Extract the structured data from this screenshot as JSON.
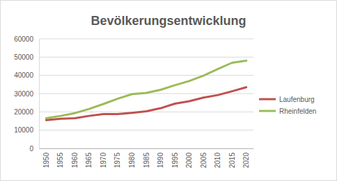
{
  "chart_data": {
    "type": "line",
    "title": "Bevölkerungsentwicklung",
    "categories": [
      "1950",
      "1955",
      "1960",
      "1965",
      "1970",
      "1975",
      "1980",
      "1985",
      "1990",
      "1995",
      "2000",
      "2005",
      "2010",
      "2015",
      "2020"
    ],
    "series": [
      {
        "name": "Laufenburg",
        "color": "#c0504d",
        "values": [
          15500,
          16200,
          16500,
          17800,
          18800,
          18800,
          19500,
          20300,
          22000,
          24500,
          25800,
          27800,
          29200,
          31300,
          33500
        ]
      },
      {
        "name": "Rheinfelden",
        "color": "#9bbb59",
        "values": [
          16500,
          17800,
          19300,
          21600,
          24300,
          27200,
          29700,
          30400,
          32100,
          34600,
          36900,
          39800,
          43400,
          46900,
          48000
        ]
      }
    ],
    "ylim": [
      0,
      60000
    ],
    "yticks": [
      0,
      10000,
      20000,
      30000,
      40000,
      50000,
      60000
    ],
    "grid": true,
    "legend": "right"
  }
}
